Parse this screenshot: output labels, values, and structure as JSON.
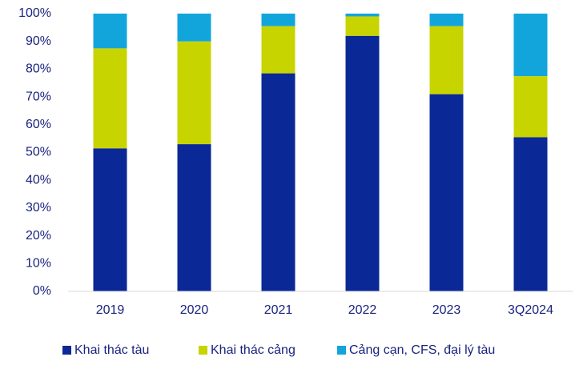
{
  "chart_data": {
    "type": "stacked_bar",
    "categories": [
      "2019",
      "2020",
      "2021",
      "2022",
      "2023",
      "3Q2024"
    ],
    "series": [
      {
        "name": "Khai thác tàu",
        "color": "#0a2896",
        "values": [
          51.5,
          53,
          78.5,
          92,
          71,
          55.5
        ]
      },
      {
        "name": "Khai thác cảng",
        "color": "#c8d400",
        "values": [
          36,
          37,
          17,
          7,
          24.5,
          22
        ]
      },
      {
        "name": "Cảng cạn, CFS, đại lý tàu",
        "color": "#12a5dc",
        "values": [
          12.5,
          10,
          4.5,
          1,
          4.5,
          22.5
        ]
      }
    ],
    "ylim": [
      0,
      100
    ],
    "yticks": [
      {
        "value": 0,
        "label": "0%"
      },
      {
        "value": 10,
        "label": "10%"
      },
      {
        "value": 20,
        "label": "20%"
      },
      {
        "value": 30,
        "label": "30%"
      },
      {
        "value": 40,
        "label": "40%"
      },
      {
        "value": 50,
        "label": "50%"
      },
      {
        "value": 60,
        "label": "60%"
      },
      {
        "value": 70,
        "label": "70%"
      },
      {
        "value": 80,
        "label": "80%"
      },
      {
        "value": 90,
        "label": "90%"
      },
      {
        "value": 100,
        "label": "100%"
      }
    ],
    "grid": false
  }
}
